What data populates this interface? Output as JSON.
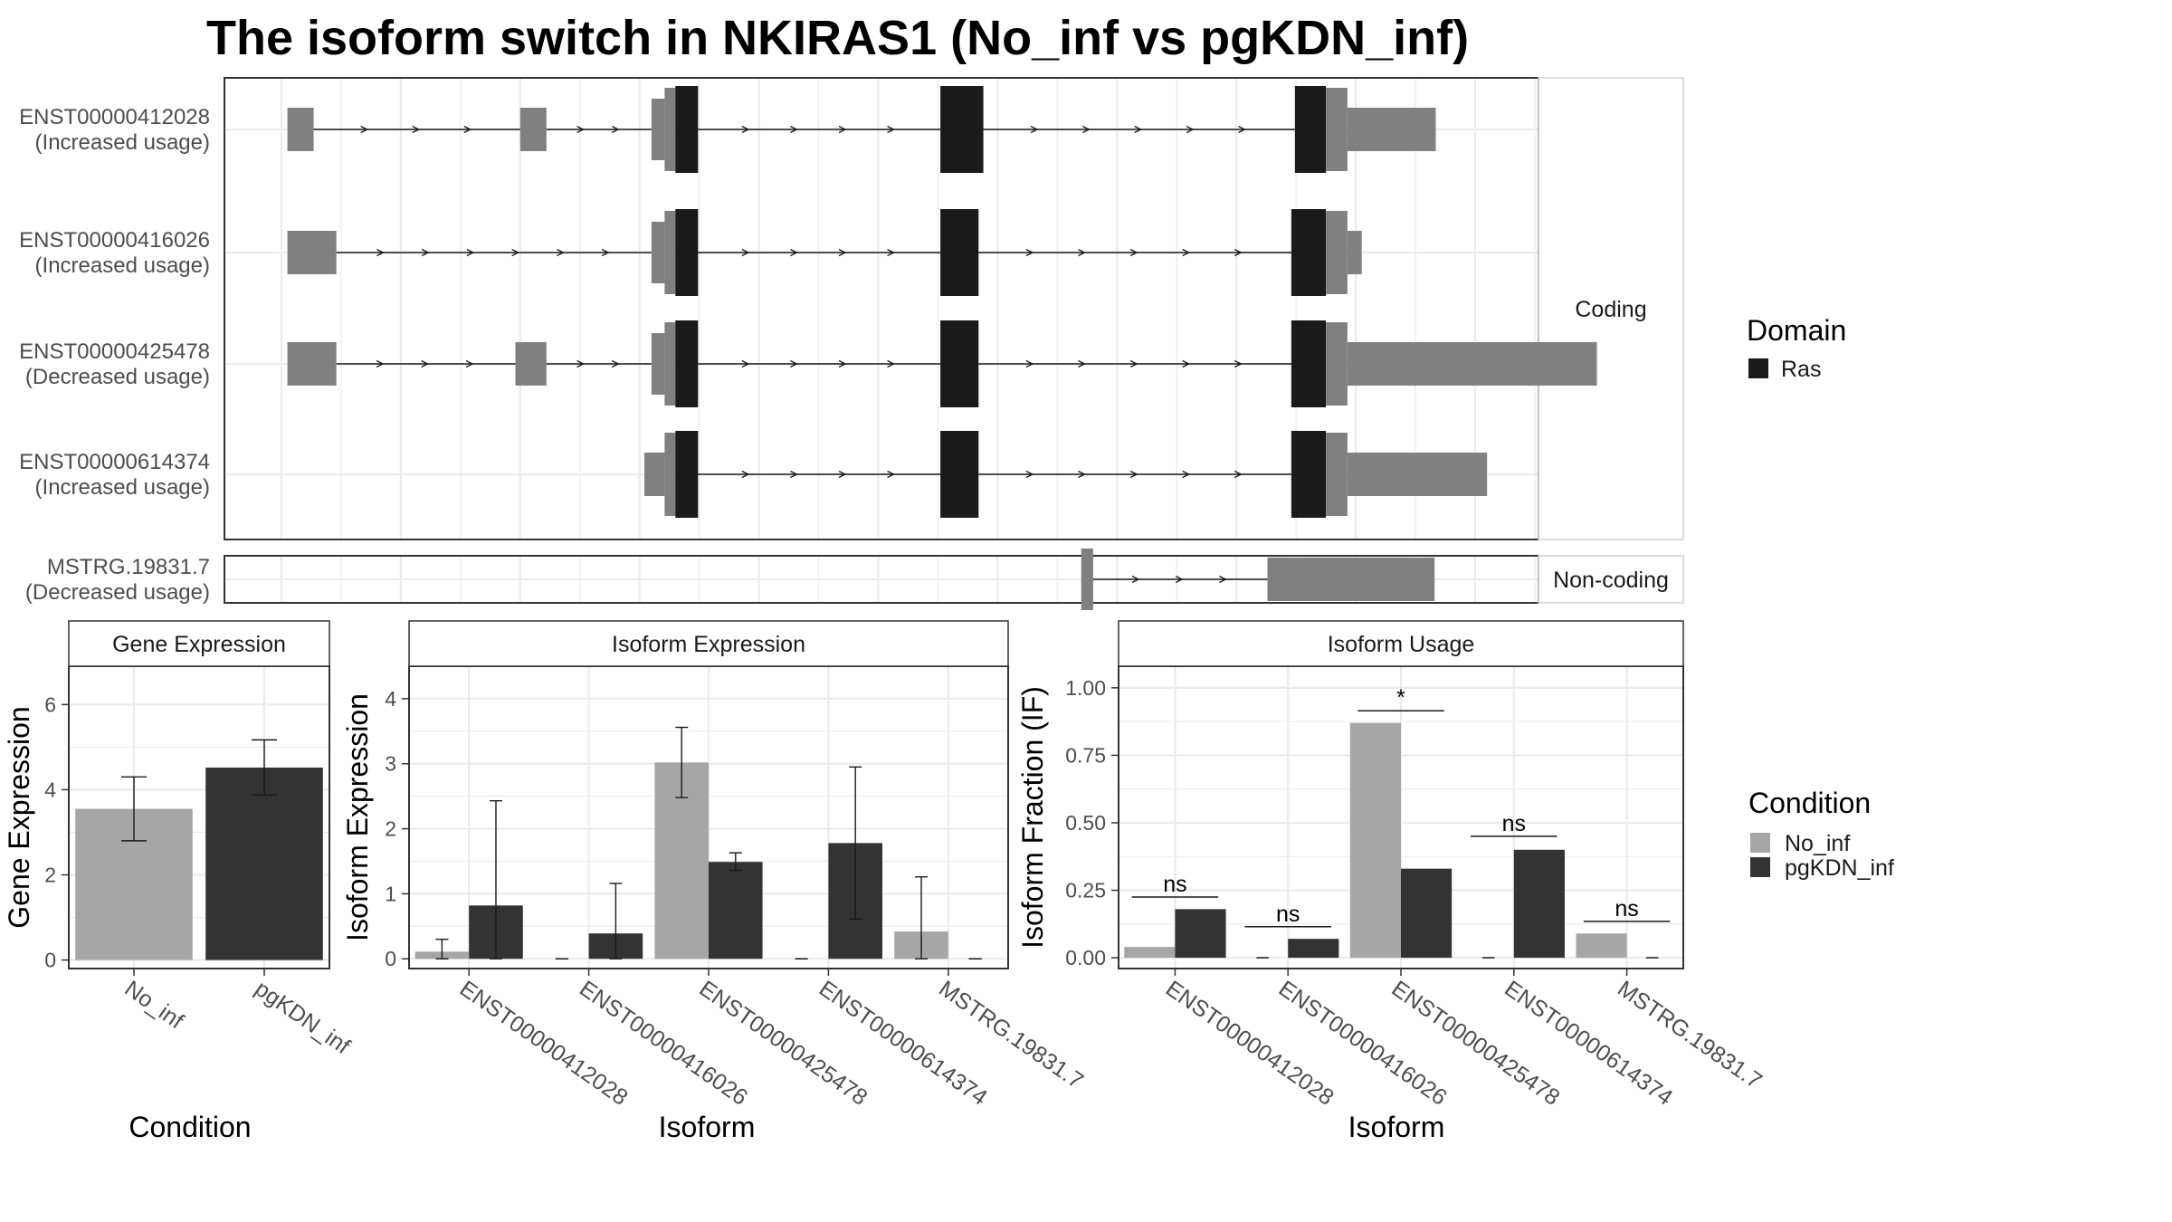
{
  "title": "The isoform switch in NKIRAS1 (No_inf vs pgKDN_inf)",
  "colors": {
    "no_inf": "#A6A6A6",
    "pgkdn_inf": "#333333",
    "domain": "#1A1A1A",
    "utr": "#808080",
    "grid": "#EBEBEB",
    "strip_fill": "#FFFFFF",
    "frame": "#333333"
  },
  "transcript_panel": {
    "facets": [
      {
        "label": "Coding",
        "transcripts": [
          {
            "id": "ENST00000412028",
            "usage": "(Increased usage)",
            "exons": [
              [
                0.005,
                0.027,
                "utr"
              ],
              [
                0.2,
                0.222,
                "utr"
              ],
              [
                0.31,
                0.321,
                "utr"
              ],
              [
                0.321,
                0.33,
                "utr"
              ],
              [
                0.33,
                0.349,
                "domain"
              ],
              [
                0.552,
                0.588,
                "domain"
              ],
              [
                0.849,
                0.875,
                "domain"
              ],
              [
                0.875,
                0.893,
                "utr"
              ],
              [
                0.893,
                0.967,
                "utr"
              ]
            ]
          },
          {
            "id": "ENST00000416026",
            "usage": "(Increased usage)",
            "exons": [
              [
                0.005,
                0.046,
                "utr"
              ],
              [
                0.31,
                0.321,
                "utr"
              ],
              [
                0.321,
                0.33,
                "utr"
              ],
              [
                0.33,
                0.349,
                "domain"
              ],
              [
                0.552,
                0.584,
                "domain"
              ],
              [
                0.846,
                0.875,
                "domain"
              ],
              [
                0.875,
                0.893,
                "utr"
              ],
              [
                0.893,
                0.905,
                "utr"
              ]
            ]
          },
          {
            "id": "ENST00000425478",
            "usage": "(Decreased usage)",
            "exons": [
              [
                0.005,
                0.046,
                "utr"
              ],
              [
                0.196,
                0.222,
                "utr"
              ],
              [
                0.31,
                0.321,
                "utr"
              ],
              [
                0.321,
                0.33,
                "utr"
              ],
              [
                0.33,
                0.349,
                "domain"
              ],
              [
                0.552,
                0.584,
                "domain"
              ],
              [
                0.846,
                0.875,
                "domain"
              ],
              [
                0.875,
                0.893,
                "utr"
              ],
              [
                0.893,
                1.102,
                "utr"
              ]
            ]
          },
          {
            "id": "ENST00000614374",
            "usage": "(Increased usage)",
            "exons": [
              [
                0.304,
                0.321,
                "utr"
              ],
              [
                0.321,
                0.33,
                "utr"
              ],
              [
                0.33,
                0.349,
                "domain"
              ],
              [
                0.552,
                0.584,
                "domain"
              ],
              [
                0.846,
                0.875,
                "domain"
              ],
              [
                0.875,
                0.893,
                "utr"
              ],
              [
                0.893,
                1.01,
                "utr"
              ]
            ]
          }
        ]
      },
      {
        "label": "Non-coding",
        "transcripts": [
          {
            "id": "MSTRG.19831.7",
            "usage": "(Decreased usage)",
            "exons": [
              [
                0.67,
                0.68,
                "utr"
              ],
              [
                0.826,
                0.966,
                "utr"
              ]
            ]
          }
        ]
      }
    ],
    "legend": {
      "title": "Domain",
      "items": [
        {
          "label": "Ras",
          "color": "#1A1A1A"
        }
      ]
    }
  },
  "chart_data": [
    {
      "type": "bar",
      "title": "Gene Expression",
      "xlabel": "Condition",
      "ylabel": "Gene Expression",
      "categories": [
        "No_inf",
        "pgKDN_inf"
      ],
      "values": [
        3.55,
        4.52
      ],
      "error_low": [
        2.8,
        3.88
      ],
      "error_high": [
        4.3,
        5.17
      ],
      "ylim": [
        -0.2,
        6.9
      ],
      "yticks": [
        0,
        2,
        4,
        6
      ],
      "ytick_labels": [
        "0",
        "2",
        "4",
        "6"
      ]
    },
    {
      "type": "bar",
      "title": "Isoform Expression",
      "xlabel": "Isoform",
      "ylabel": "Isoform Expression",
      "categories": [
        "ENST00000412028",
        "ENST00000416026",
        "ENST00000425478",
        "ENST00000614374",
        "MSTRG.19831.7"
      ],
      "series": [
        {
          "name": "No_inf",
          "values": [
            0.11,
            0.0,
            3.02,
            0.0,
            0.42
          ],
          "error_low": [
            0.0,
            0.0,
            2.48,
            0.0,
            0.0
          ],
          "error_high": [
            0.3,
            0.0,
            3.56,
            0.0,
            1.26
          ]
        },
        {
          "name": "pgKDN_inf",
          "values": [
            0.82,
            0.39,
            1.49,
            1.78,
            0.0
          ],
          "error_low": [
            0.0,
            0.0,
            1.36,
            0.61,
            0.0
          ],
          "error_high": [
            2.43,
            1.16,
            1.63,
            2.95,
            0.0
          ]
        }
      ],
      "ylim": [
        -0.15,
        4.5
      ],
      "yticks": [
        0,
        1,
        2,
        3,
        4
      ],
      "ytick_labels": [
        "0",
        "1",
        "2",
        "3",
        "4"
      ]
    },
    {
      "type": "bar",
      "title": "Isoform Usage",
      "xlabel": "Isoform",
      "ylabel": "Isoform Fraction (IF)",
      "categories": [
        "ENST00000412028",
        "ENST00000416026",
        "ENST00000425478",
        "ENST00000614374",
        "MSTRG.19831.7"
      ],
      "series": [
        {
          "name": "No_inf",
          "values": [
            0.04,
            0.0,
            0.87,
            0.0,
            0.09
          ]
        },
        {
          "name": "pgKDN_inf",
          "values": [
            0.18,
            0.07,
            0.33,
            0.4,
            0.0
          ]
        }
      ],
      "significance": [
        {
          "label": "ns",
          "y": 0.225
        },
        {
          "label": "ns",
          "y": 0.115
        },
        {
          "label": "*",
          "y": 0.915
        },
        {
          "label": "ns",
          "y": 0.45
        },
        {
          "label": "ns",
          "y": 0.135
        }
      ],
      "ylim": [
        -0.04,
        1.08
      ],
      "yticks": [
        0,
        0.25,
        0.5,
        0.75,
        1.0
      ],
      "ytick_labels": [
        "0.00",
        "0.25",
        "0.50",
        "0.75",
        "1.00"
      ]
    }
  ],
  "condition_legend": {
    "title": "Condition",
    "items": [
      {
        "label": "No_inf",
        "color": "#A6A6A6"
      },
      {
        "label": "pgKDN_inf",
        "color": "#333333"
      }
    ]
  }
}
